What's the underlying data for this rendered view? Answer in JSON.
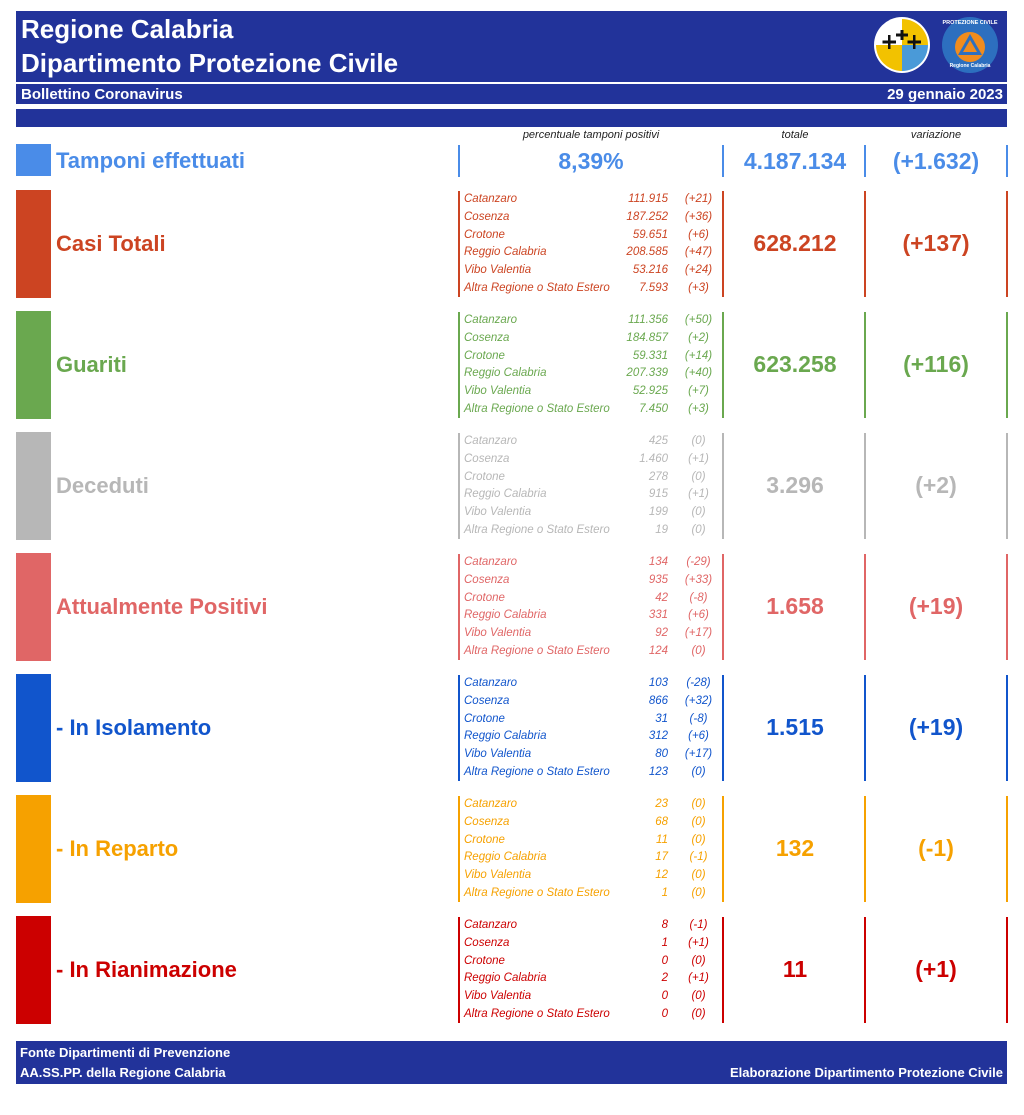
{
  "header": {
    "title_line1": "Regione Calabria",
    "title_line2": "Dipartimento Protezione Civile",
    "bulletin": "Bollettino Coronavirus",
    "date": "29 gennaio 2023",
    "logo2_text_top": "PROTEZIONE CIVILE",
    "logo2_text_bottom": "Regione Calabria"
  },
  "columns": {
    "pct_header": "percentuale tamponi positivi",
    "total_header": "totale",
    "variation_header": "variazione"
  },
  "tamponi": {
    "label": "Tamponi effettuati",
    "percent": "8,39%",
    "total": "4.187.134",
    "variation": "(+1.632)",
    "color": "#4a8ce8"
  },
  "sections": [
    {
      "label": "Casi Totali",
      "color": "#cc4422",
      "total": "628.212",
      "variation": "(+137)",
      "rows": [
        {
          "province": "Catanzaro",
          "value": "111.915",
          "delta": "(+21)"
        },
        {
          "province": "Cosenza",
          "value": "187.252",
          "delta": "(+36)"
        },
        {
          "province": "Crotone",
          "value": "59.651",
          "delta": "(+6)"
        },
        {
          "province": "Reggio Calabria",
          "value": "208.585",
          "delta": "(+47)"
        },
        {
          "province": "Vibo Valentia",
          "value": "53.216",
          "delta": "(+24)"
        },
        {
          "province": "Altra Regione o Stato Estero",
          "value": "7.593",
          "delta": "(+3)"
        }
      ]
    },
    {
      "label": "Guariti",
      "color": "#6aa84f",
      "total": "623.258",
      "variation": "(+116)",
      "rows": [
        {
          "province": "Catanzaro",
          "value": "111.356",
          "delta": "(+50)"
        },
        {
          "province": "Cosenza",
          "value": "184.857",
          "delta": "(+2)"
        },
        {
          "province": "Crotone",
          "value": "59.331",
          "delta": "(+14)"
        },
        {
          "province": "Reggio Calabria",
          "value": "207.339",
          "delta": "(+40)"
        },
        {
          "province": "Vibo Valentia",
          "value": "52.925",
          "delta": "(+7)"
        },
        {
          "province": "Altra Regione o Stato Estero",
          "value": "7.450",
          "delta": "(+3)"
        }
      ]
    },
    {
      "label": "Deceduti",
      "color": "#b7b7b7",
      "total": "3.296",
      "variation": "(+2)",
      "rows": [
        {
          "province": "Catanzaro",
          "value": "425",
          "delta": "(0)"
        },
        {
          "province": "Cosenza",
          "value": "1.460",
          "delta": "(+1)"
        },
        {
          "province": "Crotone",
          "value": "278",
          "delta": "(0)"
        },
        {
          "province": "Reggio Calabria",
          "value": "915",
          "delta": "(+1)"
        },
        {
          "province": "Vibo Valentia",
          "value": "199",
          "delta": "(0)"
        },
        {
          "province": "Altra Regione o Stato Estero",
          "value": "19",
          "delta": "(0)"
        }
      ]
    },
    {
      "label": "Attualmente Positivi",
      "color": "#e06666",
      "total": "1.658",
      "variation": "(+19)",
      "rows": [
        {
          "province": "Catanzaro",
          "value": "134",
          "delta": "(-29)"
        },
        {
          "province": "Cosenza",
          "value": "935",
          "delta": "(+33)"
        },
        {
          "province": "Crotone",
          "value": "42",
          "delta": "(-8)"
        },
        {
          "province": "Reggio Calabria",
          "value": "331",
          "delta": "(+6)"
        },
        {
          "province": "Vibo Valentia",
          "value": "92",
          "delta": "(+17)"
        },
        {
          "province": "Altra Regione o Stato Estero",
          "value": "124",
          "delta": "(0)"
        }
      ]
    },
    {
      "label": " - In Isolamento",
      "color": "#1155cc",
      "total": "1.515",
      "variation": "(+19)",
      "rows": [
        {
          "province": "Catanzaro",
          "value": "103",
          "delta": "(-28)"
        },
        {
          "province": "Cosenza",
          "value": "866",
          "delta": "(+32)"
        },
        {
          "province": "Crotone",
          "value": "31",
          "delta": "(-8)"
        },
        {
          "province": "Reggio Calabria",
          "value": "312",
          "delta": "(+6)"
        },
        {
          "province": "Vibo Valentia",
          "value": "80",
          "delta": "(+17)"
        },
        {
          "province": "Altra Regione o Stato Estero",
          "value": "123",
          "delta": "(0)"
        }
      ]
    },
    {
      "label": " - In Reparto",
      "color": "#f6a100",
      "total": "132",
      "variation": "(-1)",
      "rows": [
        {
          "province": "Catanzaro",
          "value": "23",
          "delta": "(0)"
        },
        {
          "province": "Cosenza",
          "value": "68",
          "delta": "(0)"
        },
        {
          "province": "Crotone",
          "value": "11",
          "delta": "(0)"
        },
        {
          "province": "Reggio Calabria",
          "value": "17",
          "delta": "(-1)"
        },
        {
          "province": "Vibo Valentia",
          "value": "12",
          "delta": "(0)"
        },
        {
          "province": "Altra Regione o Stato Estero",
          "value": "1",
          "delta": "(0)"
        }
      ]
    },
    {
      "label": " - In Rianimazione",
      "color": "#cc0000",
      "total": "11",
      "variation": "(+1)",
      "rows": [
        {
          "province": "Catanzaro",
          "value": "8",
          "delta": "(-1)"
        },
        {
          "province": "Cosenza",
          "value": "1",
          "delta": "(+1)"
        },
        {
          "province": "Crotone",
          "value": "0",
          "delta": "(0)"
        },
        {
          "province": "Reggio Calabria",
          "value": "2",
          "delta": "(+1)"
        },
        {
          "province": "Vibo Valentia",
          "value": "0",
          "delta": "(0)"
        },
        {
          "province": "Altra Regione o Stato Estero",
          "value": "0",
          "delta": "(0)"
        }
      ]
    }
  ],
  "footer": {
    "line1": "Fonte Dipartimenti di Prevenzione",
    "line2": "AA.SS.PP.  della Regione Calabria",
    "credit": "Elaborazione Dipartimento Protezione Civile"
  }
}
